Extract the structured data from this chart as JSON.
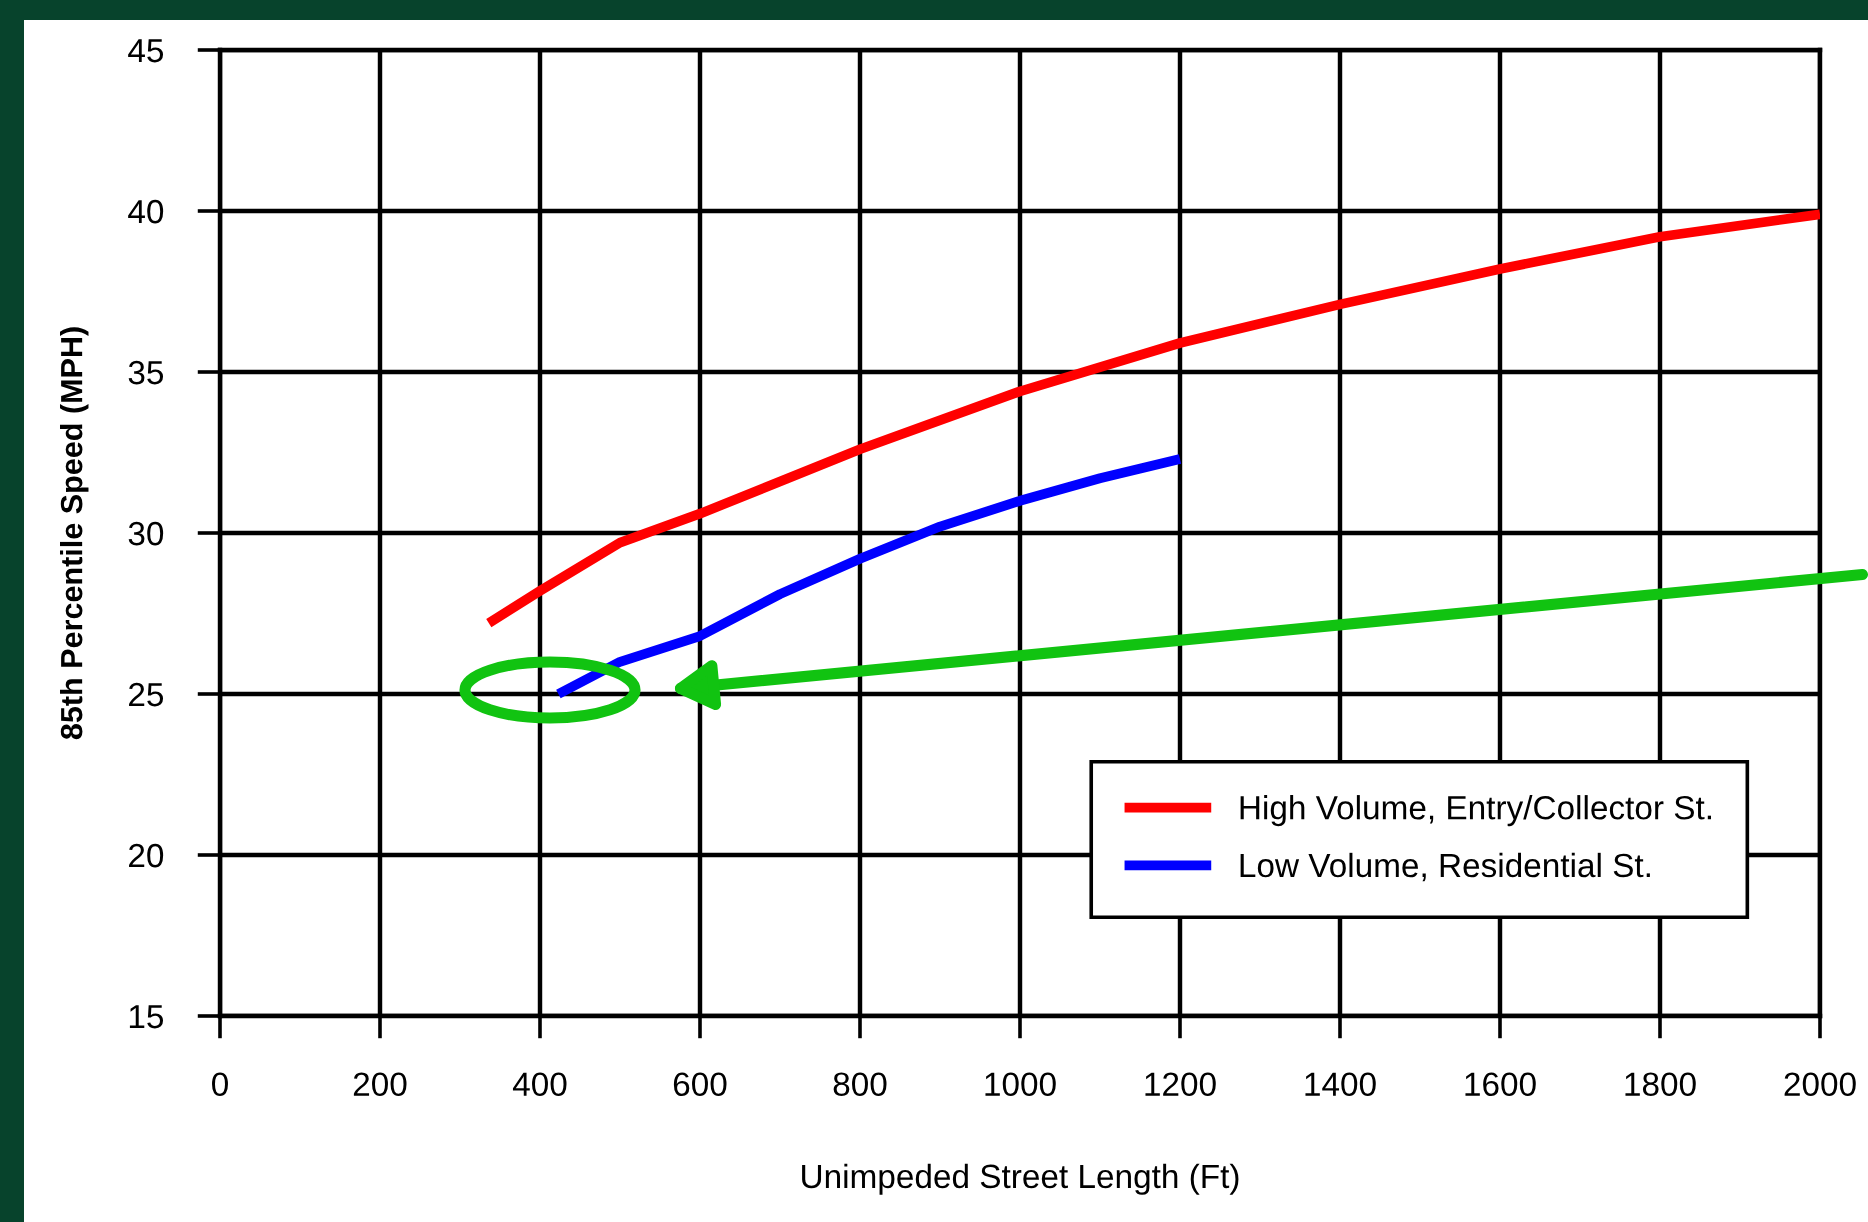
{
  "chart_data": {
    "type": "line",
    "xlabel": "Unimpeded Street Length (Ft)",
    "ylabel": "85th Percentile Speed (MPH)",
    "series": [
      {
        "name": "High Volume, Entry/Collector St.",
        "color": "#ff0000",
        "x": [
          336,
          400,
          500,
          600,
          800,
          1000,
          1200,
          1400,
          1600,
          1800,
          2000
        ],
        "values": [
          27.2,
          28.2,
          29.7,
          30.6,
          32.6,
          34.4,
          35.9,
          37.1,
          38.2,
          39.2,
          39.9
        ]
      },
      {
        "name": "Low Volume, Residential St.",
        "color": "#0000ff",
        "x": [
          423,
          500,
          600,
          700,
          800,
          900,
          1000,
          1100,
          1200
        ],
        "values": [
          25,
          26.0,
          26.8,
          28.1,
          29.2,
          30.2,
          31.0,
          31.7,
          32.3
        ]
      }
    ],
    "xlim": [
      0,
      2000
    ],
    "xticks": [
      0,
      200,
      400,
      600,
      800,
      1000,
      1200,
      1400,
      1600,
      1800,
      2000
    ],
    "ylim": [
      15,
      45
    ],
    "yticks": [
      15,
      20,
      25,
      30,
      35,
      40,
      45
    ],
    "grid": true,
    "legend": "bottom right",
    "marker": "none",
    "line_style": "solid"
  }
}
